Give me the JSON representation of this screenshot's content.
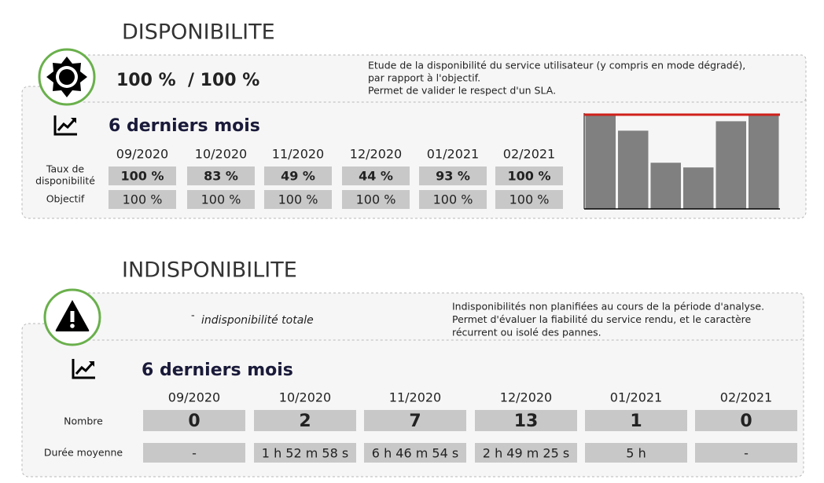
{
  "availability": {
    "title": "DISPONIBILITE",
    "summary": "100 %  / 100 %",
    "description": [
      "Etude de la disponibilité du service utilisateur (y compris en mode dégradé),",
      "par rapport à l'objectif.",
      "Permet de valider le respect d'un SLA."
    ],
    "period_title": "6 derniers mois",
    "months": [
      "09/2020",
      "10/2020",
      "11/2020",
      "12/2020",
      "01/2021",
      "02/2021"
    ],
    "row_labels": {
      "rate": [
        "Taux de",
        "disponibilité"
      ],
      "objective": "Objectif"
    },
    "rates": [
      {
        "value": 100,
        "label": "100 %",
        "color": "#5aa832"
      },
      {
        "value": 83,
        "label": "83 %",
        "color": "#e02020"
      },
      {
        "value": 49,
        "label": "49 %",
        "color": "#e02020"
      },
      {
        "value": 44,
        "label": "44 %",
        "color": "#e02020"
      },
      {
        "value": 93,
        "label": "93 %",
        "color": "#e02020"
      },
      {
        "value": 100,
        "label": "100 %",
        "color": "#5aa832"
      }
    ],
    "objectives": [
      {
        "value": 100,
        "label": "100 %"
      },
      {
        "value": 100,
        "label": "100 %"
      },
      {
        "value": 100,
        "label": "100 %"
      },
      {
        "value": 100,
        "label": "100 %"
      },
      {
        "value": 100,
        "label": "100 %"
      },
      {
        "value": 100,
        "label": "100 %"
      }
    ]
  },
  "unavailability": {
    "title": "INDISPONIBILITE",
    "summary_dash": "-",
    "summary": "indisponibilité totale",
    "description": [
      "Indisponibilités non planifiées au cours de la période d'analyse.",
      "Permet d'évaluer la fiabilité du service rendu, et le caractère",
      "récurrent ou isolé des pannes."
    ],
    "period_title": "6 derniers mois",
    "months": [
      "09/2020",
      "10/2020",
      "11/2020",
      "12/2020",
      "01/2021",
      "02/2021"
    ],
    "row_labels": {
      "count": "Nombre",
      "duration": "Durée moyenne"
    },
    "counts": [
      0,
      2,
      7,
      13,
      1,
      0
    ],
    "durations": [
      "-",
      "1 h 52 m 58 s",
      "6 h 46 m 54 s",
      "2 h 49 m 25 s",
      "5 h",
      "-"
    ]
  }
}
